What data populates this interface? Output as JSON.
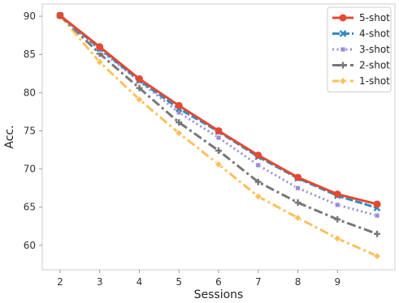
{
  "chart_data": {
    "type": "line",
    "xlabel": "Sessions",
    "ylabel": "Acc.",
    "x_tick_labels": [
      "2",
      "3",
      "4",
      "5",
      "6",
      "7",
      "8",
      "9"
    ],
    "y_tick_labels": [
      "60",
      "65",
      "70",
      "75",
      "80",
      "85",
      "90"
    ],
    "xlim": [
      1.55,
      10.45
    ],
    "ylim": [
      56.8,
      91.6
    ],
    "grid": true,
    "legend_position": "top-right",
    "x": [
      2,
      3,
      4,
      5,
      6,
      7,
      8,
      9,
      10
    ],
    "series": [
      {
        "name": "5-shot",
        "color": "#e24a33",
        "line_style": "solid",
        "marker": "circle",
        "values": [
          90.1,
          86.0,
          81.8,
          78.3,
          75.0,
          71.8,
          68.9,
          66.7,
          65.4
        ]
      },
      {
        "name": "4-shot",
        "color": "#348abd",
        "line_style": "dashed",
        "marker": "x",
        "values": [
          90.1,
          85.8,
          81.6,
          77.9,
          74.9,
          71.6,
          68.8,
          66.5,
          64.9
        ]
      },
      {
        "name": "3-shot",
        "color": "#988ed5",
        "line_style": "dotted",
        "marker": "square",
        "values": [
          90.1,
          85.6,
          81.5,
          77.4,
          74.1,
          70.5,
          67.5,
          65.3,
          63.9
        ]
      },
      {
        "name": "2-shot",
        "color": "#777777",
        "line_style": "dashdot",
        "marker": "plus",
        "values": [
          90.1,
          85.1,
          80.6,
          76.1,
          72.4,
          68.3,
          65.6,
          63.4,
          61.5
        ]
      },
      {
        "name": "1-shot",
        "color": "#fbc15e",
        "line_style": "dashdot",
        "marker": "diamond",
        "values": [
          90.1,
          84.0,
          79.1,
          74.7,
          70.6,
          66.4,
          63.6,
          60.9,
          58.6
        ]
      }
    ]
  }
}
